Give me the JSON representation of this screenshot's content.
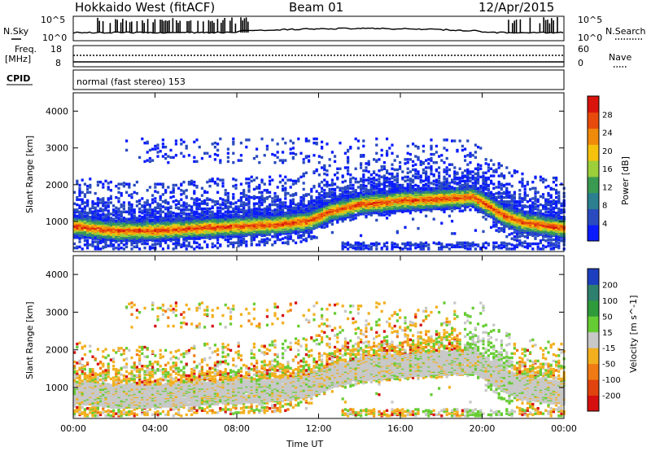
{
  "header": {
    "station": "Hokkaido West (fitACF)",
    "beam": "Beam 01",
    "date": "12/Apr/2015"
  },
  "status_panels": {
    "nsky_label": "N.Sky",
    "nsearch_label": "N.Search",
    "noise_ticks_left": [
      "10^5",
      "10^0"
    ],
    "noise_ticks_right": [
      "10^5",
      "10^0"
    ],
    "freq_label": "Freq.",
    "freq_unit": "[MHz]",
    "freq_ticks": [
      "18",
      "8"
    ],
    "nave_label": "Nave",
    "nave_ticks": [
      "60",
      "0"
    ],
    "cpid_label": "CPID",
    "cpid_text": "normal (fast stereo) 153"
  },
  "chart_data": [
    {
      "type": "heatmap",
      "title": "",
      "xlabel": "",
      "ylabel": "Slant Range [km]",
      "ylim": [
        180,
        4500
      ],
      "x_ticks": [
        "00:00",
        "04:00",
        "08:00",
        "12:00",
        "16:00",
        "20:00",
        "00:00"
      ],
      "y_ticks": [
        1000,
        2000,
        3000,
        4000
      ],
      "colorbar": {
        "label": "Power [dB]",
        "ticks": [
          4,
          8,
          12,
          16,
          20,
          24,
          28
        ],
        "range": [
          0,
          30
        ],
        "colors": [
          "#0a1cff",
          "#2a4bbf",
          "#2b7f8f",
          "#3a9a52",
          "#9ccf3a",
          "#f4c20d",
          "#f08a0a",
          "#e84a0c",
          "#d8140c"
        ]
      },
      "trace_center_km": [
        {
          "x": 0.0,
          "y": 1000
        },
        {
          "x": 2.0,
          "y": 880
        },
        {
          "x": 4.0,
          "y": 880
        },
        {
          "x": 6.0,
          "y": 950
        },
        {
          "x": 8.0,
          "y": 1000
        },
        {
          "x": 10.0,
          "y": 1050
        },
        {
          "x": 11.5,
          "y": 1150
        },
        {
          "x": 12.5,
          "y": 1400
        },
        {
          "x": 14.0,
          "y": 1600
        },
        {
          "x": 16.0,
          "y": 1700
        },
        {
          "x": 18.0,
          "y": 1750
        },
        {
          "x": 19.5,
          "y": 1800
        },
        {
          "x": 20.0,
          "y": 1650
        },
        {
          "x": 21.0,
          "y": 1300
        },
        {
          "x": 22.0,
          "y": 1100
        },
        {
          "x": 24.0,
          "y": 950
        }
      ]
    },
    {
      "type": "heatmap",
      "title": "",
      "xlabel": "Time UT",
      "ylabel": "Slant Range [km]",
      "ylim": [
        180,
        4500
      ],
      "x_ticks": [
        "00:00",
        "04:00",
        "08:00",
        "12:00",
        "16:00",
        "20:00",
        "00:00"
      ],
      "y_ticks": [
        1000,
        2000,
        3000,
        4000
      ],
      "colorbar": {
        "label": "Velocity [m s^-1]",
        "ticks": [
          "200",
          "100",
          "50",
          "15",
          "-15",
          "-50",
          "-100",
          "-200"
        ],
        "colors": [
          "#1c3fbf",
          "#2e7f6e",
          "#2f9a3c",
          "#66cc33",
          "#c8c8c8",
          "#f2b01e",
          "#f07a14",
          "#e0430e",
          "#d61010"
        ]
      }
    }
  ]
}
